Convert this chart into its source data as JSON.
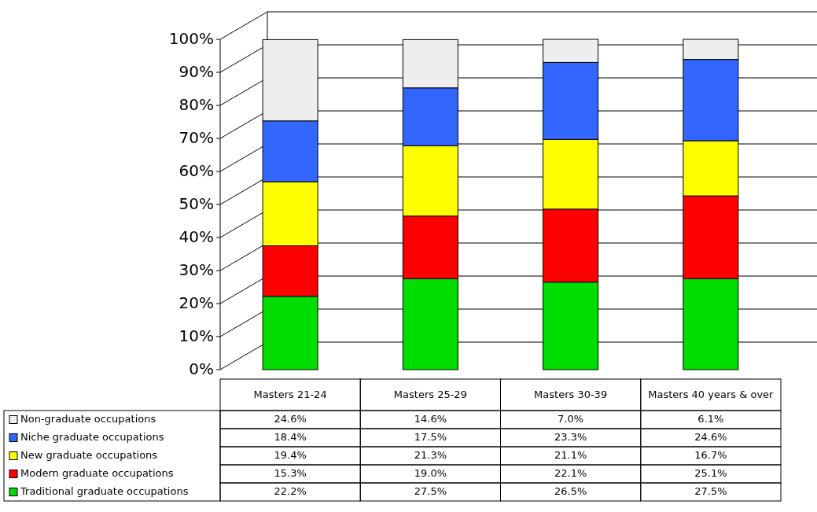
{
  "chart_data": {
    "type": "bar",
    "stacked": true,
    "categories": [
      "Masters 21-24",
      "Masters 25-29",
      "Masters 30-39",
      "Masters 40 years & over"
    ],
    "series": [
      {
        "name": "Traditional graduate occupations",
        "color": "#00dd00",
        "values": [
          22.2,
          27.5,
          26.5,
          27.5
        ],
        "value_labels": [
          "22.2%",
          "27.5%",
          "26.5%",
          "27.5%"
        ]
      },
      {
        "name": "Modern graduate occupations",
        "color": "#ff0000",
        "values": [
          15.3,
          19.0,
          22.1,
          25.1
        ],
        "value_labels": [
          "15.3%",
          "19.0%",
          "22.1%",
          "25.1%"
        ]
      },
      {
        "name": "New graduate occupations",
        "color": "#ffff00",
        "values": [
          19.4,
          21.3,
          21.1,
          16.7
        ],
        "value_labels": [
          "19.4%",
          "21.3%",
          "21.1%",
          "16.7%"
        ]
      },
      {
        "name": "Niche graduate occupations",
        "color": "#3366ff",
        "values": [
          18.4,
          17.5,
          23.3,
          24.6
        ],
        "value_labels": [
          "18.4%",
          "17.5%",
          "23.3%",
          "24.6%"
        ]
      },
      {
        "name": "Non-graduate occupations",
        "color": "#eeeeee",
        "values": [
          24.6,
          14.6,
          7.0,
          6.1
        ],
        "value_labels": [
          "24.6%",
          "14.6%",
          "7.0%",
          "6.1%"
        ]
      }
    ],
    "ylim": [
      0,
      100
    ],
    "yticks": [
      {
        "value": 0,
        "label": "0%"
      },
      {
        "value": 10,
        "label": "10%"
      },
      {
        "value": 20,
        "label": "20%"
      },
      {
        "value": 30,
        "label": "30%"
      },
      {
        "value": 40,
        "label": "40%"
      },
      {
        "value": 50,
        "label": "50%"
      },
      {
        "value": 60,
        "label": "60%"
      },
      {
        "value": 70,
        "label": "70%"
      },
      {
        "value": 80,
        "label": "80%"
      },
      {
        "value": 90,
        "label": "90%"
      },
      {
        "value": 100,
        "label": "100%"
      }
    ],
    "grid": "y",
    "legend": "bottom left"
  }
}
